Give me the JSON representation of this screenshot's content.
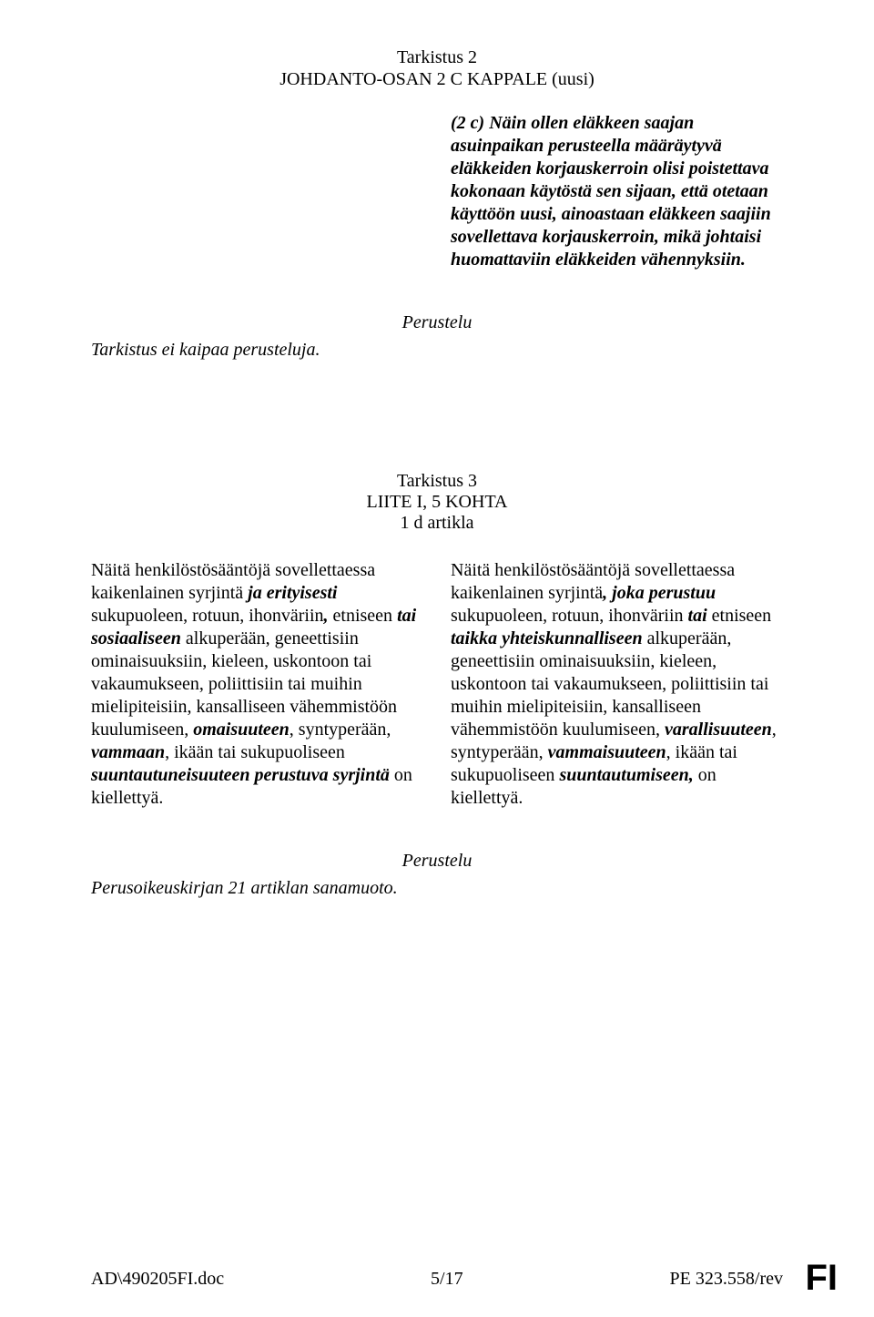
{
  "amendment2": {
    "title": "Tarkistus 2",
    "subtitle": "JOHDANTO-OSAN 2 C KAPPALE (uusi)",
    "recital_prefix": "(2 c) Näin ollen eläkkeen saajan asuinpaikan perusteella määräytyvä eläkkeiden korjauskerroin olisi poistettava kokonaan käytöstä sen sijaan, että otetaan käyttöön uusi, ainoastaan eläkkeen saajiin sovellettava korjauskerroin, mikä johtaisi huomattaviin eläkkeiden vähennyksiin.",
    "justification_label": "Perustelu",
    "justification_text": "Tarkistus ei kaipaa perusteluja."
  },
  "amendment3": {
    "title": "Tarkistus 3",
    "sub1": "LIITE I, 5 KOHTA",
    "sub2": "1 d artikla",
    "left": {
      "p1_a": "Näitä henkilöstösääntöjä sovellettaessa kaikenlainen syrjintä ",
      "p1_b": "ja erityisesti",
      "p1_c": " sukupuoleen, rotuun, ihonväriin",
      "p1_d": ",",
      "p1_e": " etniseen ",
      "p1_f": "tai sosiaaliseen",
      "p1_g": " alkuperään, geneettisiin ominaisuuksiin, kieleen, uskontoon tai vakaumukseen, poliittisiin tai muihin mielipiteisiin, kansalliseen vähemmistöön kuulumiseen, ",
      "p1_h": "omaisuuteen",
      "p1_i": ", syntyperään, ",
      "p1_j": "vammaan",
      "p1_k": ", ikään tai sukupuoliseen ",
      "p1_l": "suuntautuneisuuteen perustuva syrjintä",
      "p1_m": " on kiellettyä."
    },
    "right": {
      "p1_a": "Näitä henkilöstösääntöjä sovellettaessa kaikenlainen syrjintä",
      "p1_b": ", joka perustuu",
      "p1_c": " sukupuoleen, rotuun, ihonväriin ",
      "p1_d": "tai",
      "p1_e": " etniseen ",
      "p1_f": "taikka yhteiskunnalliseen",
      "p1_g": " alkuperään, geneettisiin ominaisuuksiin, kieleen, uskontoon tai vakaumukseen, poliittisiin tai muihin mielipiteisiin, kansalliseen vähemmistöön kuulumiseen, ",
      "p1_h": "varallisuuteen",
      "p1_i": ", syntyperään, ",
      "p1_j": "vammaisuuteen",
      "p1_k": ", ikään tai sukupuoliseen ",
      "p1_l": "suuntautumiseen,",
      "p1_m": " on kiellettyä."
    },
    "justification_label": "Perustelu",
    "justification_text": "Perusoikeuskirjan 21 artiklan sanamuoto."
  },
  "footer": {
    "left": "AD\\490205FI.doc",
    "center": "5/17",
    "right": "PE 323.558/rev"
  },
  "corner": "FI"
}
